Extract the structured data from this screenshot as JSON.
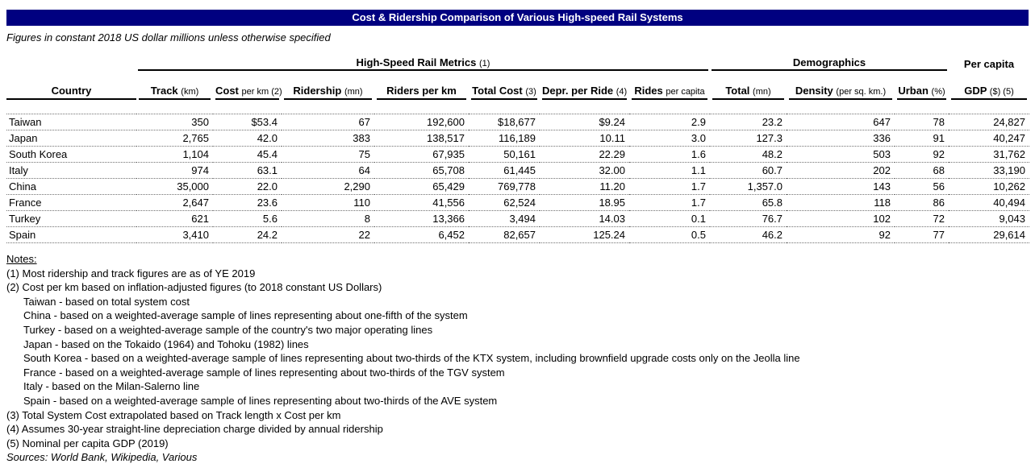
{
  "title": "Cost & Ridership Comparison of Various High-speed Rail Systems",
  "subtitle": "Figures in constant 2018 US dollar millions unless otherwise specified",
  "colors": {
    "title_bar_bg": "#000080",
    "title_text": "#FFFFFF",
    "text": "#000000",
    "rule": "#000000",
    "dotted_row_divider": "#707070"
  },
  "table": {
    "group_headers": [
      {
        "label": "High-Speed Rail Metrics",
        "suffix": "(1)"
      },
      {
        "label": "Demographics",
        "suffix": ""
      },
      {
        "label": "Per capita",
        "suffix": ""
      }
    ],
    "columns": [
      {
        "main": "Country",
        "sub": ""
      },
      {
        "main": "Track",
        "sub": "(km)"
      },
      {
        "main": "Cost",
        "sub": "per km (2)"
      },
      {
        "main": "Ridership",
        "sub": "(mn)"
      },
      {
        "main": "Riders per km",
        "sub": ""
      },
      {
        "main": "Total Cost",
        "sub": "(3)"
      },
      {
        "main": "Depr. per Ride",
        "sub": "(4)"
      },
      {
        "main": "Rides",
        "sub": "per capita"
      },
      {
        "main": "Total",
        "sub": "(mn)"
      },
      {
        "main": "Density",
        "sub": "(per sq. km.)"
      },
      {
        "main": "Urban",
        "sub": "(%)"
      },
      {
        "main": "GDP",
        "sub": "($) (5)"
      }
    ],
    "rows": [
      [
        "Taiwan",
        "350",
        "$53.4",
        "67",
        "192,600",
        "$18,677",
        "$9.24",
        "2.9",
        "23.2",
        "647",
        "78",
        "24,827"
      ],
      [
        "Japan",
        "2,765",
        "42.0",
        "383",
        "138,517",
        "116,189",
        "10.11",
        "3.0",
        "127.3",
        "336",
        "91",
        "40,247"
      ],
      [
        "South Korea",
        "1,104",
        "45.4",
        "75",
        "67,935",
        "50,161",
        "22.29",
        "1.6",
        "48.2",
        "503",
        "92",
        "31,762"
      ],
      [
        "Italy",
        "974",
        "63.1",
        "64",
        "65,708",
        "61,445",
        "32.00",
        "1.1",
        "60.7",
        "202",
        "68",
        "33,190"
      ],
      [
        "China",
        "35,000",
        "22.0",
        "2,290",
        "65,429",
        "769,778",
        "11.20",
        "1.7",
        "1,357.0",
        "143",
        "56",
        "10,262"
      ],
      [
        "France",
        "2,647",
        "23.6",
        "110",
        "41,556",
        "62,524",
        "18.95",
        "1.7",
        "65.8",
        "118",
        "86",
        "40,494"
      ],
      [
        "Turkey",
        "621",
        "5.6",
        "8",
        "13,366",
        "3,494",
        "14.03",
        "0.1",
        "76.7",
        "102",
        "72",
        "9,043"
      ],
      [
        "Spain",
        "3,410",
        "24.2",
        "22",
        "6,452",
        "82,657",
        "125.24",
        "0.5",
        "46.2",
        "92",
        "77",
        "29,614"
      ]
    ]
  },
  "notes": {
    "heading": "Notes:",
    "lines": [
      {
        "text": "(1) Most ridership and track figures are as of YE 2019",
        "indent": false
      },
      {
        "text": "(2) Cost per km based on inflation-adjusted figures (to 2018 constant US Dollars)",
        "indent": false
      },
      {
        "text": "Taiwan - based on total system cost",
        "indent": true
      },
      {
        "text": "China - based on a weighted-average sample of lines representing about one-fifth of the system",
        "indent": true
      },
      {
        "text": "Turkey - based on a weighted-average sample of the country's two major operating lines",
        "indent": true
      },
      {
        "text": "Japan - based on the Tokaido (1964) and Tohoku (1982) lines",
        "indent": true
      },
      {
        "text": "South Korea - based on a weighted-average sample of lines representing about two-thirds of the KTX system, including brownfield upgrade costs only on the Jeolla line",
        "indent": true
      },
      {
        "text": "France - based on a weighted-average sample of lines representing about two-thirds of the TGV system",
        "indent": true
      },
      {
        "text": "Italy - based on the Milan-Salerno line",
        "indent": true
      },
      {
        "text": "Spain - based on a weighted-average sample of lines representing about two-thirds of the AVE system",
        "indent": true
      },
      {
        "text": "(3) Total System Cost extrapolated based on Track length x Cost per km",
        "indent": false
      },
      {
        "text": "(4) Assumes 30-year straight-line depreciation charge divided by annual ridership",
        "indent": false
      },
      {
        "text": "(5) Nominal per capita GDP (2019)",
        "indent": false
      }
    ],
    "sources": "Sources: World Bank, Wikipedia, Various"
  }
}
